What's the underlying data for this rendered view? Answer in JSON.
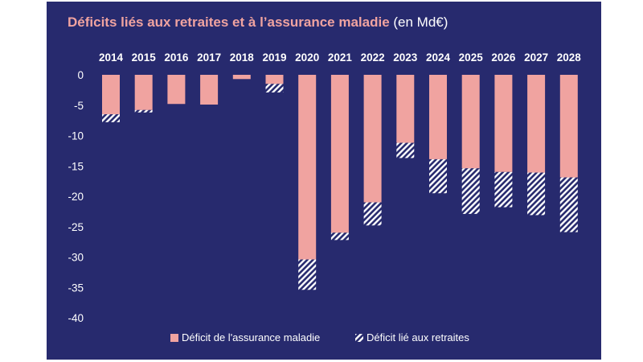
{
  "title": "Déficits liés aux retraites et à l’assurance maladie",
  "unit": "(en Md€)",
  "colors": {
    "background": "#272a6e",
    "health": "#f0a3a0",
    "pensions_stripe": "#ffffff",
    "title": "#f0a3a0"
  },
  "chart_data": {
    "type": "bar",
    "stacked": true,
    "title": "Déficits liés aux retraites et à l’assurance maladie (en Md€)",
    "categories": [
      "2014",
      "2015",
      "2016",
      "2017",
      "2018",
      "2019",
      "2020",
      "2021",
      "2022",
      "2023",
      "2024",
      "2025",
      "2026",
      "2027",
      "2028"
    ],
    "series": [
      {
        "name": "Déficit de l'assurance maladie",
        "pattern": "solid",
        "values": [
          -6.5,
          -5.8,
          -4.8,
          -4.9,
          -0.7,
          -1.5,
          -30.4,
          -26.0,
          -21.0,
          -11.2,
          -13.9,
          -15.4,
          -16.0,
          -16.1,
          -16.9
        ]
      },
      {
        "name": "Déficit lié aux retraites",
        "pattern": "hatched",
        "values": [
          -1.3,
          -0.4,
          0,
          0,
          0,
          -1.4,
          -5.0,
          -1.2,
          -3.8,
          -2.5,
          -5.6,
          -7.5,
          -5.8,
          -7.0,
          -9.0
        ]
      }
    ],
    "ylim": [
      -40,
      0
    ],
    "yticks": [
      0,
      -5,
      -10,
      -15,
      -20,
      -25,
      -30,
      -35,
      -40
    ],
    "legend_position": "bottom-center",
    "x_labels_position": "top"
  }
}
